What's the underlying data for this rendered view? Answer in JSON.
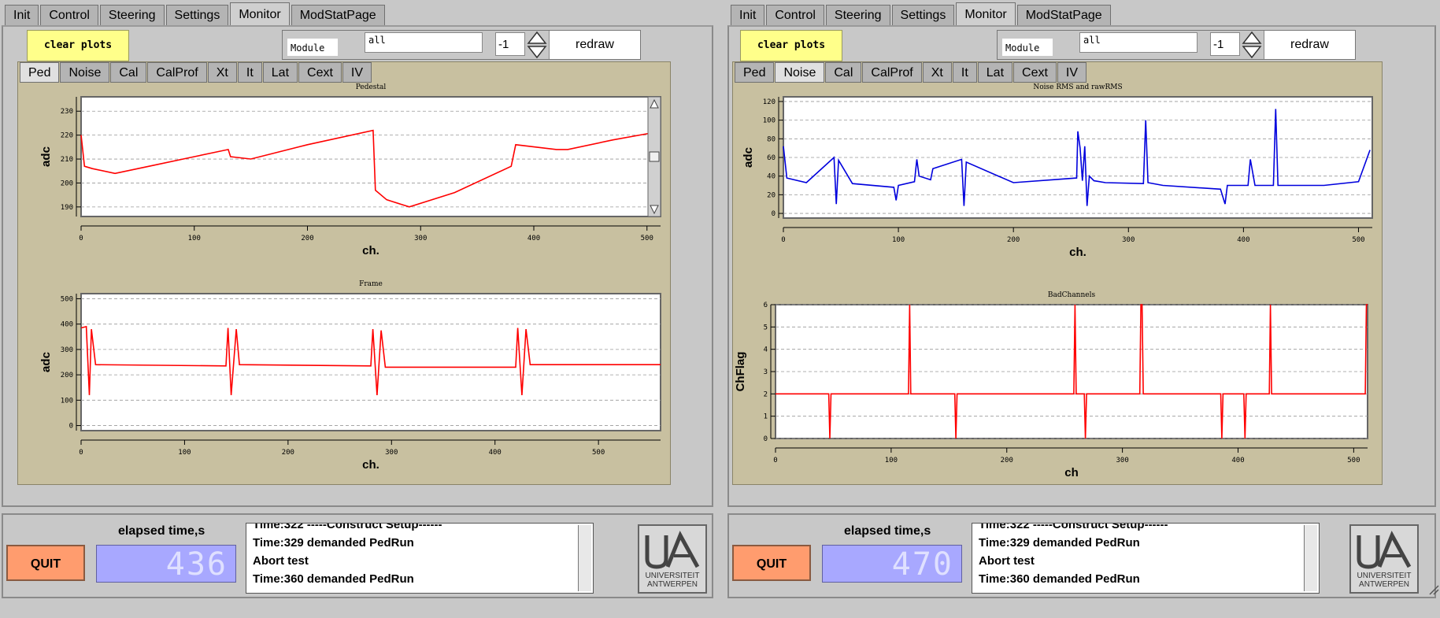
{
  "tabs": [
    "Init",
    "Control",
    "Steering",
    "Settings",
    "Monitor",
    "ModStatPage"
  ],
  "active_tab": "Monitor",
  "subtabs": [
    "Ped",
    "Noise",
    "Cal",
    "CalProf",
    "Xt",
    "It",
    "Lat",
    "Cext",
    "IV"
  ],
  "controls": {
    "clear_label": "clear plots",
    "module_label": "Module",
    "module_value": "all",
    "spin_value": "-1",
    "redraw_label": "redraw"
  },
  "footer": {
    "quit_label": "QUIT",
    "elapsed_label": "elapsed time,s"
  },
  "log_lines": [
    "Time:322 -----Construct Setup------",
    "Time:329 demanded PedRun",
    "Abort test",
    "Time:360 demanded PedRun"
  ],
  "logo": {
    "line1": "UNIVERSITEIT",
    "line2": "ANTWERPEN"
  },
  "left": {
    "active_subtab": "Ped",
    "elapsed": "436",
    "plots": [
      {
        "title": "Pedestal",
        "xlabel": "ch.",
        "ylabel": "adc"
      },
      {
        "title": "Frame",
        "xlabel": "ch.",
        "ylabel": "adc"
      }
    ]
  },
  "right": {
    "active_subtab": "Noise",
    "elapsed": "470",
    "plots": [
      {
        "title": "Noise RMS and rawRMS",
        "xlabel": "ch.",
        "ylabel": "adc"
      },
      {
        "title": "BadChannels",
        "xlabel": "ch",
        "ylabel": "ChFlag"
      }
    ]
  },
  "colors": {
    "ped": "#ff0000",
    "noise": "#0000dd",
    "bad": "#ff0000",
    "clear_bg": "#ffff8a",
    "quit_bg": "#ff9c6e",
    "elapsed_bg": "#a8a8ff"
  },
  "chart_data": [
    {
      "type": "line",
      "title": "Pedestal",
      "xlabel": "ch.",
      "ylabel": "adc",
      "xlim": [
        0,
        512
      ],
      "ylim": [
        186,
        236
      ],
      "xticks": [
        0,
        100,
        200,
        300,
        400,
        500
      ],
      "yticks": [
        190,
        200,
        210,
        220,
        230
      ],
      "series": [
        {
          "x": [
            0,
            3,
            10,
            30,
            60,
            100,
            130,
            132,
            150,
            200,
            258,
            260,
            270,
            290,
            330,
            380,
            384,
            420,
            430,
            470,
            505
          ],
          "y": [
            220,
            207,
            206,
            204,
            207,
            211,
            214,
            211,
            210,
            216,
            222,
            197,
            193,
            190,
            196,
            207,
            216,
            214,
            214,
            218,
            221
          ]
        }
      ]
    },
    {
      "type": "line",
      "title": "Frame",
      "xlabel": "ch.",
      "ylabel": "adc",
      "xlim": [
        0,
        560
      ],
      "ylim": [
        -20,
        520
      ],
      "xticks": [
        0,
        100,
        200,
        300,
        400,
        500
      ],
      "yticks": [
        0,
        100,
        200,
        300,
        400,
        500
      ],
      "series": [
        {
          "x": [
            0,
            5,
            8,
            10,
            14,
            140,
            142,
            145,
            150,
            153,
            280,
            282,
            286,
            290,
            294,
            420,
            422,
            426,
            430,
            434,
            560
          ],
          "y": [
            385,
            390,
            120,
            380,
            240,
            235,
            385,
            120,
            380,
            240,
            235,
            380,
            120,
            375,
            230,
            230,
            385,
            120,
            380,
            240,
            240
          ]
        }
      ]
    },
    {
      "type": "line",
      "title": "Noise RMS and rawRMS",
      "xlabel": "ch.",
      "ylabel": "adc",
      "xlim": [
        0,
        512
      ],
      "ylim": [
        -5,
        125
      ],
      "xticks": [
        0,
        100,
        200,
        300,
        400,
        500
      ],
      "yticks": [
        0,
        20,
        40,
        60,
        80,
        100,
        120
      ],
      "series": [
        {
          "x": [
            0,
            3,
            20,
            44,
            46,
            48,
            60,
            96,
            98,
            100,
            114,
            116,
            118,
            128,
            130,
            155,
            157,
            159,
            200,
            255,
            256,
            258,
            260,
            262,
            264,
            266,
            270,
            280,
            313,
            315,
            317,
            330,
            380,
            384,
            386,
            404,
            406,
            410,
            426,
            428,
            430,
            470,
            500,
            510
          ],
          "y": [
            72,
            38,
            33,
            60,
            10,
            57,
            32,
            28,
            14,
            30,
            34,
            58,
            40,
            36,
            48,
            58,
            8,
            55,
            33,
            38,
            88,
            70,
            35,
            72,
            8,
            40,
            35,
            33,
            32,
            100,
            33,
            30,
            26,
            10,
            30,
            30,
            58,
            30,
            30,
            112,
            30,
            30,
            34,
            68
          ]
        }
      ]
    },
    {
      "type": "line",
      "title": "BadChannels",
      "xlabel": "ch",
      "ylabel": "ChFlag",
      "xlim": [
        0,
        512
      ],
      "ylim": [
        0,
        6
      ],
      "xticks": [
        0,
        100,
        200,
        300,
        400,
        500
      ],
      "yticks": [
        0,
        1,
        2,
        3,
        4,
        5,
        6
      ],
      "series": [
        {
          "x": [
            0,
            46,
            47,
            48,
            115,
            116,
            117,
            155,
            156,
            157,
            258,
            259,
            260,
            267,
            268,
            269,
            315,
            316,
            317,
            318,
            385,
            386,
            387,
            405,
            406,
            407,
            427,
            428,
            429,
            510,
            511,
            512
          ],
          "y": [
            2,
            2,
            0,
            2,
            2,
            6,
            2,
            2,
            0,
            2,
            2,
            6,
            2,
            2,
            0,
            2,
            2,
            6,
            6,
            2,
            2,
            0,
            2,
            2,
            0,
            2,
            2,
            6,
            2,
            2,
            6,
            6
          ]
        }
      ]
    }
  ]
}
